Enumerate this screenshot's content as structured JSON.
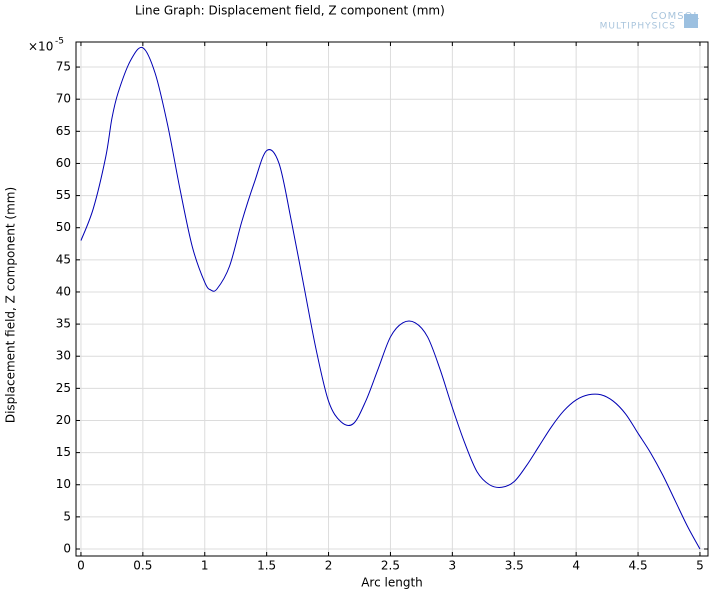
{
  "chart_data": {
    "type": "line",
    "title": "Line Graph: Displacement field, Z component (mm)",
    "x_label": "Arc length",
    "y_label": "Displacement field, Z component (mm)",
    "y_multiplier": {
      "base": "×10",
      "exponent": "-5"
    },
    "logo": [
      "COMSOL",
      "MULTIPHYSICS"
    ],
    "grid": true,
    "xlim": [
      -0.04,
      5.065
    ],
    "ylim": [
      -1.09,
      78.9
    ],
    "xticks": [
      0,
      0.5,
      1,
      1.5,
      2,
      2.5,
      3,
      3.5,
      4,
      4.5,
      5
    ],
    "yticks": [
      0,
      5,
      10,
      15,
      20,
      25,
      30,
      35,
      40,
      45,
      50,
      55,
      60,
      65,
      70,
      75
    ],
    "x": [
      0,
      0.1,
      0.2,
      0.25,
      0.3,
      0.4,
      0.5,
      0.6,
      0.7,
      0.8,
      0.9,
      1.0,
      1.05,
      1.1,
      1.2,
      1.3,
      1.4,
      1.5,
      1.6,
      1.7,
      1.8,
      1.9,
      2.0,
      2.1,
      2.2,
      2.3,
      2.4,
      2.5,
      2.6,
      2.7,
      2.8,
      2.9,
      3.0,
      3.1,
      3.2,
      3.3,
      3.4,
      3.5,
      3.6,
      3.7,
      3.8,
      3.9,
      4.0,
      4.1,
      4.2,
      4.3,
      4.4,
      4.5,
      4.6,
      4.7,
      4.8,
      4.9,
      5.0
    ],
    "series": [
      {
        "color": "#0000b4",
        "values": [
          48,
          53,
          61,
          67,
          71,
          76,
          78,
          74,
          66,
          56,
          47,
          41.5,
          40.3,
          40.5,
          44,
          51,
          57,
          62,
          60,
          51,
          41,
          31,
          23,
          19.8,
          19.5,
          23,
          28,
          33,
          35.2,
          35.2,
          33,
          28,
          22,
          16.5,
          12,
          10,
          9.6,
          10.5,
          13,
          16,
          19,
          21.5,
          23.2,
          24,
          24,
          23,
          21,
          18,
          15,
          11.5,
          7.5,
          3.5,
          0
        ]
      }
    ]
  }
}
